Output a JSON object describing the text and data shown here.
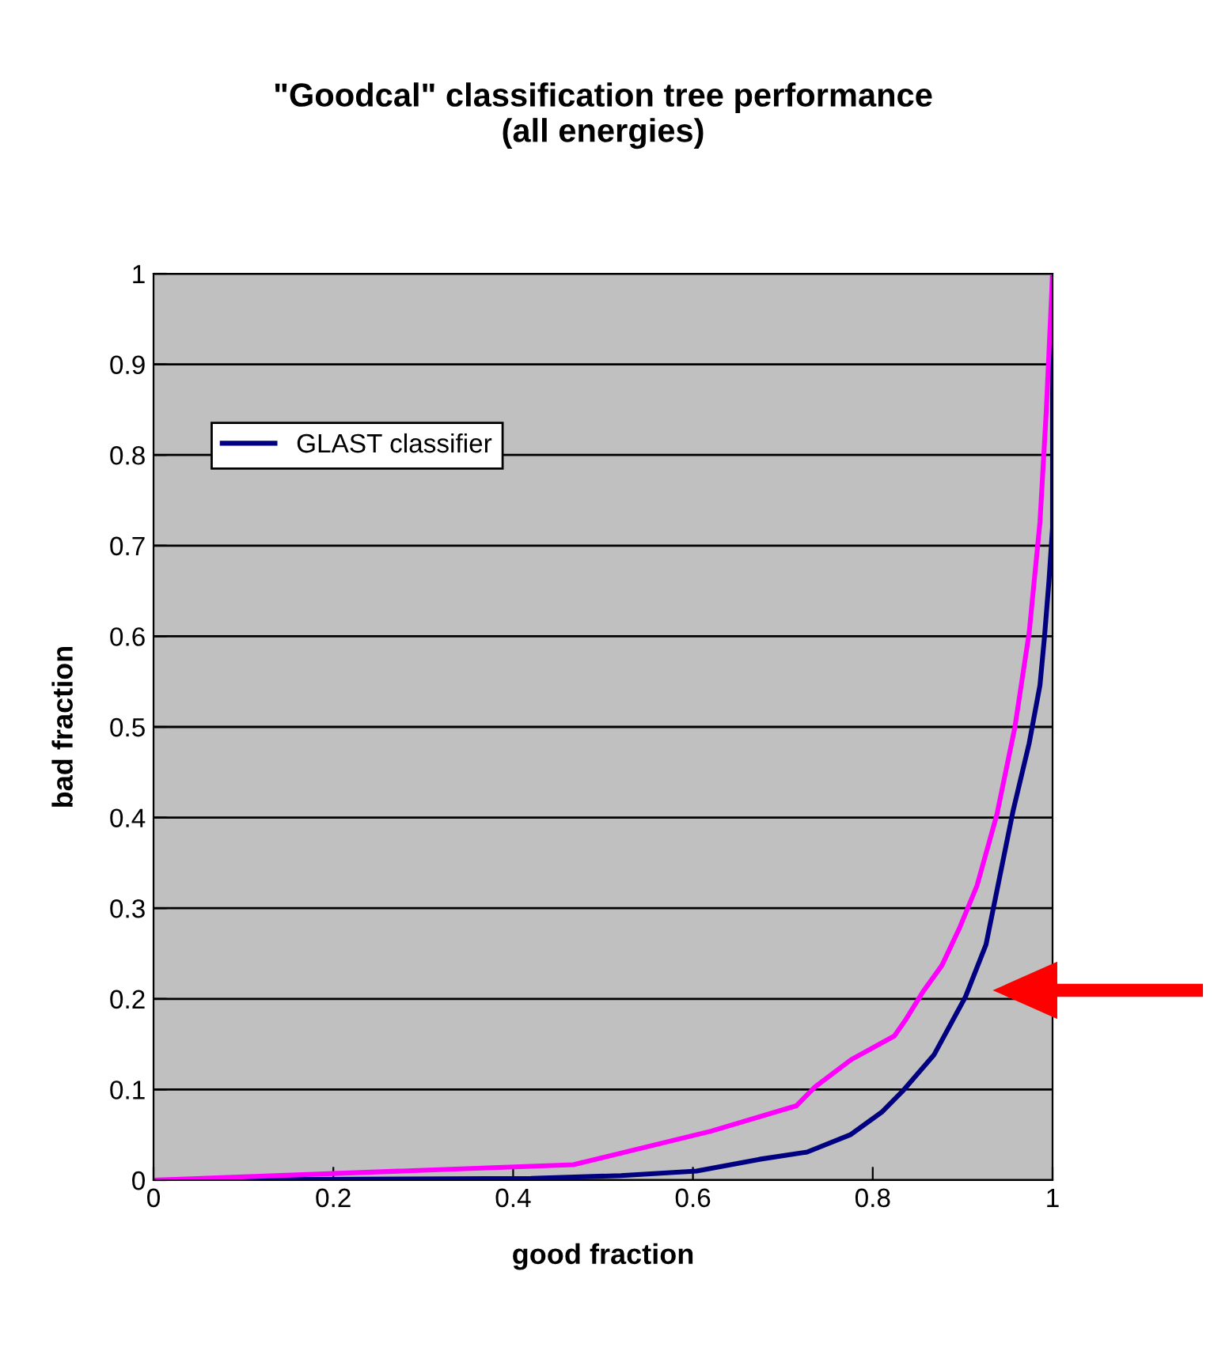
{
  "chart_data": {
    "type": "line",
    "title": "\"Goodcal\" classification tree performance\n(all energies)",
    "xlabel": "good fraction",
    "ylabel": "bad fraction",
    "xlim": [
      0,
      1
    ],
    "ylim": [
      0,
      1
    ],
    "xticks": [
      0,
      0.2,
      0.4,
      0.6,
      0.8,
      1
    ],
    "yticks": [
      0,
      0.1,
      0.2,
      0.3,
      0.4,
      0.5,
      0.6,
      0.7,
      0.8,
      0.9,
      1
    ],
    "grid": "y",
    "legend": "top left",
    "marker": "none",
    "line_style": "solid",
    "series": [
      {
        "name": "GLAST classifier",
        "color": "#000080",
        "x": [
          0,
          0.42,
          0.52,
          0.604,
          0.674,
          0.727,
          0.775,
          0.81,
          0.833,
          0.868,
          0.903,
          0.926,
          0.956,
          0.974,
          0.986,
          0.991,
          0.996,
          1,
          1
        ],
        "values": [
          0,
          0.002,
          0.005,
          0.01,
          0.023,
          0.031,
          0.05,
          0.075,
          0.098,
          0.138,
          0.202,
          0.26,
          0.407,
          0.482,
          0.546,
          0.599,
          0.661,
          0.72,
          1
        ]
      },
      {
        "color": "#ff00ff",
        "x": [
          0,
          0.467,
          0.62,
          0.715,
          0.736,
          0.776,
          0.824,
          0.836,
          0.856,
          0.877,
          0.896,
          0.916,
          0.938,
          0.958,
          0.974,
          0.986,
          0.993,
          1
        ],
        "values": [
          0,
          0.017,
          0.054,
          0.082,
          0.103,
          0.133,
          0.159,
          0.176,
          0.208,
          0.237,
          0.277,
          0.325,
          0.403,
          0.499,
          0.604,
          0.726,
          0.848,
          1
        ]
      }
    ]
  }
}
